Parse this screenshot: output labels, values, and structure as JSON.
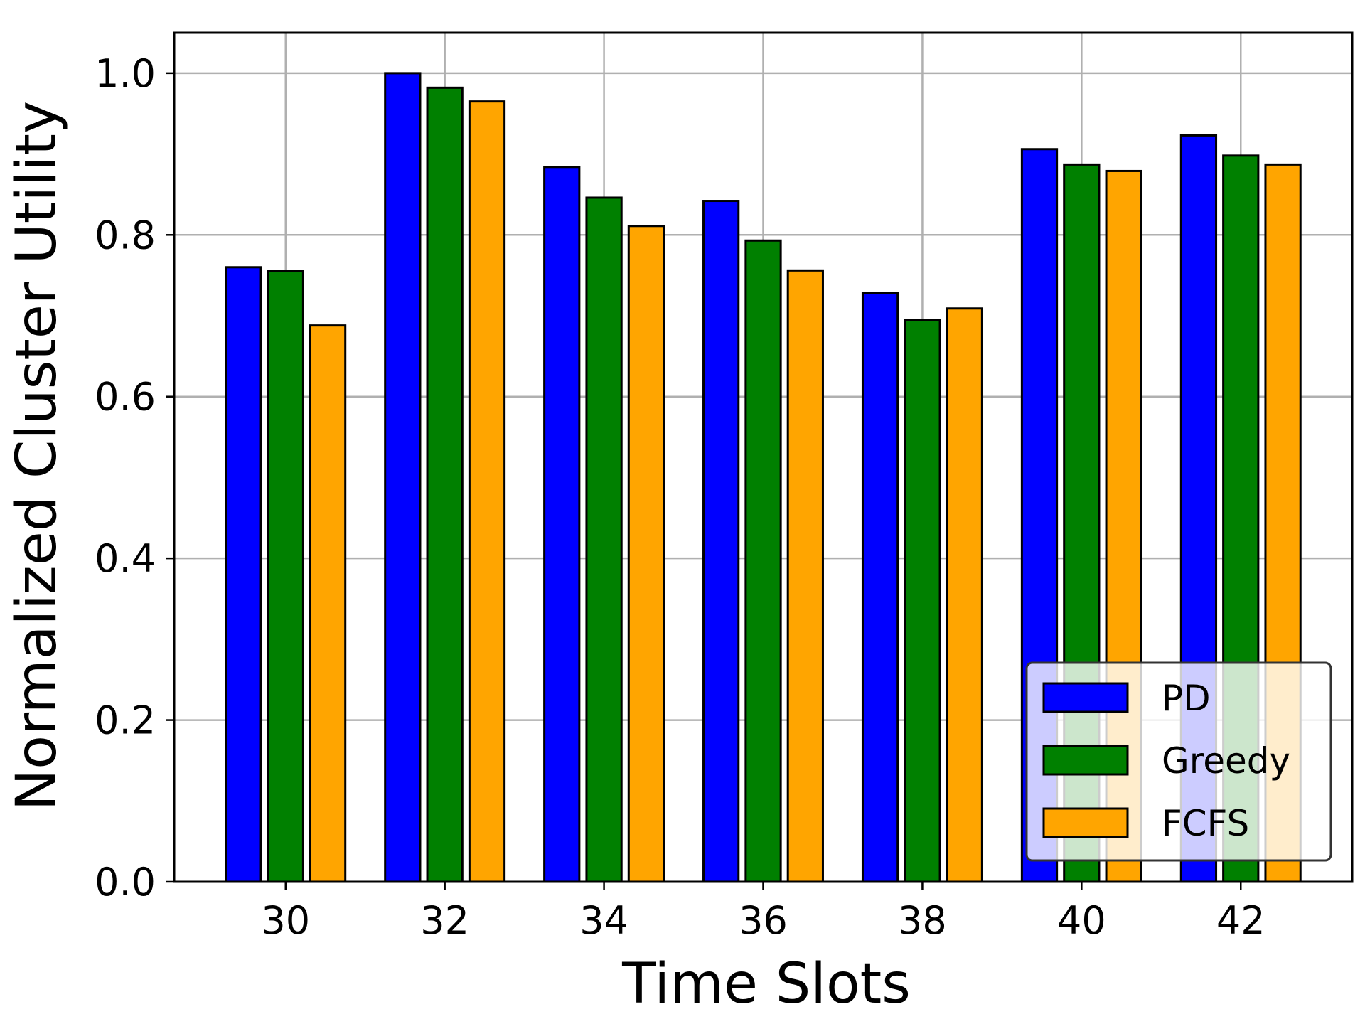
{
  "chart_data": {
    "type": "bar",
    "xlabel": "Time Slots",
    "ylabel": "Normalized Cluster Utility",
    "categories": [
      "30",
      "32",
      "34",
      "36",
      "38",
      "40",
      "42"
    ],
    "x": [
      30,
      32,
      34,
      36,
      38,
      40,
      42
    ],
    "xlim": [
      28.6,
      43.4
    ],
    "ylim": [
      0.0,
      1.05
    ],
    "yticks": [
      "0.0",
      "0.2",
      "0.4",
      "0.6",
      "0.8",
      "1.0"
    ],
    "ytick_values": [
      0.0,
      0.2,
      0.4,
      0.6,
      0.8,
      1.0
    ],
    "grid": true,
    "legend": "lower-right",
    "series": [
      {
        "name": "PD",
        "color": "#0000ff",
        "values": [
          0.76,
          1.0,
          0.884,
          0.842,
          0.728,
          0.906,
          0.923
        ]
      },
      {
        "name": "Greedy",
        "color": "#008000",
        "values": [
          0.755,
          0.982,
          0.846,
          0.793,
          0.695,
          0.887,
          0.898
        ]
      },
      {
        "name": "FCFS",
        "color": "#ffa500",
        "values": [
          0.688,
          0.965,
          0.811,
          0.756,
          0.709,
          0.879,
          0.887
        ]
      }
    ]
  }
}
